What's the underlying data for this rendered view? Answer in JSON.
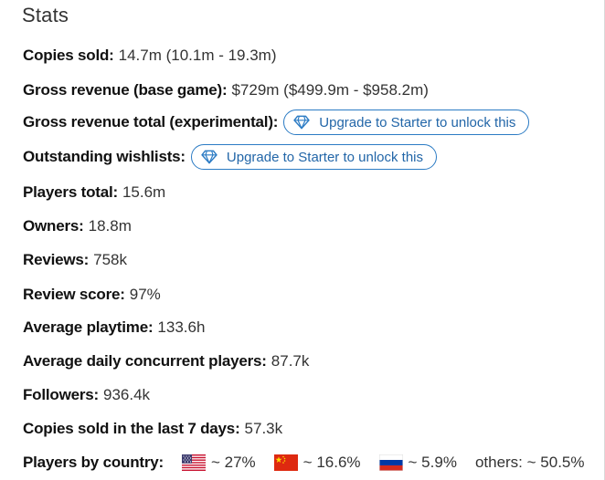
{
  "section_title": "Stats",
  "upgrade_label": "Upgrade to Starter to unlock this",
  "stats": [
    {
      "label": "Copies sold:",
      "value": "14.7m (10.1m - 19.3m)"
    },
    {
      "label": "Gross revenue (base game):",
      "value": "$729m ($499.9m - $958.2m)"
    },
    {
      "label": "Gross revenue total (experimental):",
      "value": null,
      "locked": true
    },
    {
      "label": "Outstanding wishlists:",
      "value": null,
      "locked": true
    },
    {
      "label": "Players total:",
      "value": "15.6m"
    },
    {
      "label": "Owners:",
      "value": "18.8m"
    },
    {
      "label": "Reviews:",
      "value": "758k"
    },
    {
      "label": "Review score:",
      "value": "97%"
    },
    {
      "label": "Average playtime:",
      "value": "133.6h"
    },
    {
      "label": "Average daily concurrent players:",
      "value": "87.7k"
    },
    {
      "label": "Followers:",
      "value": "936.4k"
    },
    {
      "label": "Copies sold in the last 7 days:",
      "value": "57.3k"
    }
  ],
  "players_by_country": {
    "label": "Players by country:",
    "countries": [
      {
        "flag": "us-flag-icon",
        "value": "~ 27%"
      },
      {
        "flag": "china-flag-icon",
        "value": "~ 16.6%"
      },
      {
        "flag": "russia-flag-icon",
        "value": "~ 5.9%"
      }
    ],
    "others": "others: ~ 50.5%"
  },
  "colors": {
    "accent": "#2b7bc4",
    "label": "#111111",
    "value": "#333333"
  }
}
